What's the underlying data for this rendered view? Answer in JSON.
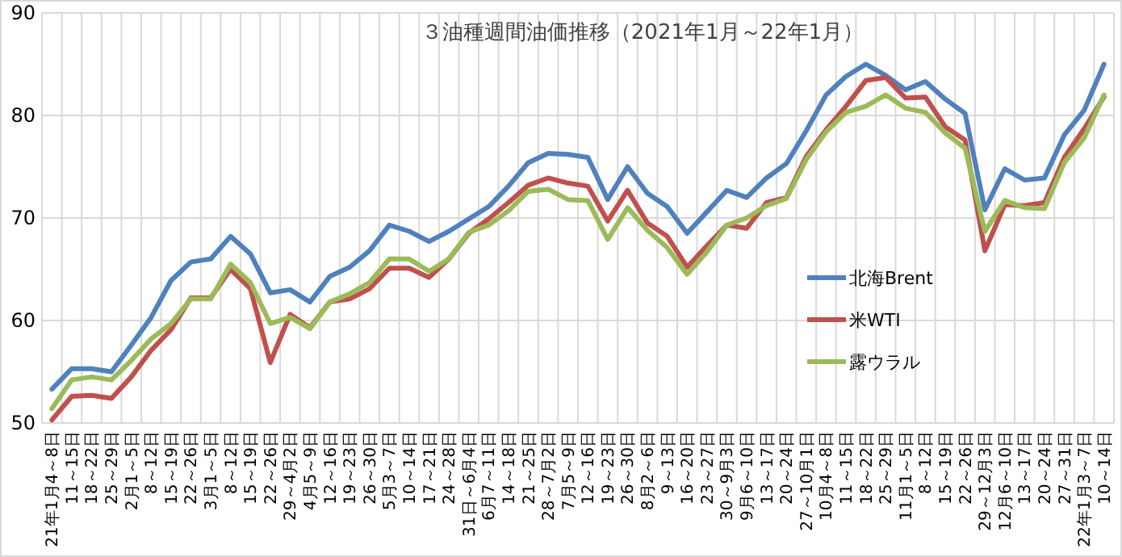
{
  "chart_data": {
    "type": "line",
    "title": "３油種週間油価推移（2021年1月～22年1月）",
    "categories": [
      "21年1月4～8日",
      "11～15日",
      "18～22日",
      "25～29日",
      "2月1～5日",
      "8～12日",
      "15～19日",
      "22～26日",
      "3月1～5日",
      "8～12日",
      "15～19日",
      "22～26日",
      "29～4月2日",
      "4月5～9日",
      "12～16日",
      "19～23日",
      "26～30日",
      "5月3～7日",
      "10～14日",
      "17～21日",
      "24～28日",
      "31日～6月4日",
      "6月7～11日",
      "14～18日",
      "21～25日",
      "28～7月2日",
      "7月5～9日",
      "12～16日",
      "19～23日",
      "26～30日",
      "8月2～6日",
      "9～13日",
      "16～20日",
      "23～27日",
      "30～9月3日",
      "9月6～10日",
      "13～17日",
      "20～24日",
      "27～10月1日",
      "10月4～8日",
      "11～15日",
      "18～22日",
      "25～29日",
      "11月1～5日",
      "8～12日",
      "15～19日",
      "22～26日",
      "29～12月3日",
      "12月6～10日",
      "13～17日",
      "20～24日",
      "27～31日",
      "22年1月3～7日",
      "10～14日"
    ],
    "series": [
      {
        "name": "北海Brent",
        "color": "#4f81bd",
        "values": [
          53.3,
          55.3,
          55.3,
          55.0,
          57.6,
          60.3,
          63.9,
          65.7,
          66.0,
          68.2,
          66.5,
          62.7,
          63.0,
          61.8,
          64.3,
          65.2,
          66.8,
          69.3,
          68.7,
          67.7,
          68.7,
          69.9,
          71.1,
          73.1,
          75.4,
          76.3,
          76.2,
          75.9,
          71.8,
          75.0,
          72.4,
          71.1,
          68.5,
          70.6,
          72.7,
          72.0,
          73.9,
          75.3,
          78.5,
          82.0,
          83.8,
          85.0,
          83.9,
          82.5,
          83.3,
          81.6,
          80.2,
          70.8,
          74.8,
          73.7,
          73.9,
          78.1,
          80.5,
          85.0
        ]
      },
      {
        "name": "米WTI",
        "color": "#c0504d",
        "values": [
          50.3,
          52.6,
          52.7,
          52.4,
          54.5,
          57.1,
          59.1,
          62.2,
          62.2,
          65.0,
          63.1,
          55.9,
          60.6,
          59.3,
          61.8,
          62.1,
          63.1,
          65.1,
          65.1,
          64.2,
          66.0,
          68.5,
          69.9,
          71.5,
          73.2,
          73.9,
          73.4,
          73.1,
          69.7,
          72.7,
          69.5,
          68.2,
          65.2,
          67.3,
          69.3,
          69.0,
          71.5,
          72.0,
          76.0,
          78.6,
          80.9,
          83.4,
          83.7,
          81.7,
          81.8,
          78.9,
          77.6,
          66.8,
          71.3,
          71.2,
          71.5,
          75.9,
          78.7,
          81.8
        ]
      },
      {
        "name": "露ウラル",
        "color": "#9bbb59",
        "values": [
          51.4,
          54.2,
          54.5,
          54.2,
          56.1,
          58.2,
          59.7,
          62.1,
          62.1,
          65.5,
          63.7,
          59.7,
          60.3,
          59.2,
          61.8,
          62.6,
          63.7,
          66.0,
          66.0,
          64.8,
          66.0,
          68.6,
          69.3,
          70.7,
          72.6,
          72.8,
          71.8,
          71.7,
          67.9,
          71.0,
          68.8,
          67.1,
          64.5,
          66.7,
          69.3,
          70.0,
          71.2,
          71.9,
          75.7,
          78.4,
          80.3,
          80.9,
          82.0,
          80.7,
          80.3,
          78.3,
          76.8,
          68.7,
          71.7,
          71.0,
          70.9,
          75.4,
          77.8,
          82.0
        ]
      }
    ],
    "ylim": [
      50,
      90
    ],
    "yticks": [
      50,
      60,
      70,
      80,
      90
    ],
    "grid": true,
    "legend": "right",
    "marker": "none",
    "line_style": "solid"
  }
}
